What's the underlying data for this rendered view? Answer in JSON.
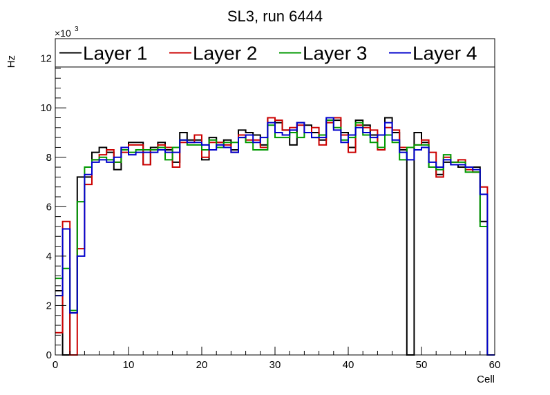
{
  "chart_data": {
    "type": "line",
    "title": "SL3, run 6444",
    "xlabel": "Cell",
    "ylabel": "Hz",
    "y_multiplier": "×10",
    "y_multiplier_exp": "3",
    "xlim": [
      0,
      60
    ],
    "ylim": [
      0,
      12.8
    ],
    "x_ticks": [
      0,
      10,
      20,
      30,
      40,
      50,
      60
    ],
    "y_ticks": [
      0,
      2,
      4,
      6,
      8,
      10,
      12
    ],
    "grid": false,
    "legend_position": "top",
    "bin_edges_start": 0,
    "bin_width": 1,
    "series": [
      {
        "name": "Layer 1",
        "color": "#000000",
        "values": [
          2.6,
          0,
          1.7,
          7.2,
          7.2,
          8.2,
          8.4,
          8.2,
          7.5,
          8.4,
          8.6,
          8.6,
          7.7,
          8.4,
          8.6,
          8.3,
          7.8,
          9.0,
          8.7,
          8.7,
          7.9,
          8.8,
          8.6,
          8.7,
          8.3,
          9.1,
          9.0,
          8.9,
          8.5,
          9.6,
          9.4,
          9.1,
          8.5,
          9.4,
          9.3,
          9.0,
          8.7,
          9.5,
          9.5,
          9.0,
          8.4,
          9.5,
          9.3,
          8.9,
          8.4,
          9.6,
          9.0,
          8.3,
          0,
          9.0,
          8.6,
          7.6,
          7.3,
          7.8,
          7.7,
          7.6,
          7.6,
          7.6,
          5.4,
          0
        ]
      },
      {
        "name": "Layer 2",
        "color": "#cc0000",
        "values": [
          0.9,
          5.4,
          0,
          4.3,
          6.9,
          7.9,
          8.1,
          8.3,
          7.8,
          8.2,
          8.5,
          8.5,
          7.7,
          8.3,
          8.5,
          8.4,
          7.6,
          8.6,
          8.6,
          8.9,
          8.0,
          8.6,
          8.6,
          8.5,
          8.2,
          8.9,
          8.7,
          8.7,
          8.4,
          9.6,
          9.5,
          9.1,
          9.2,
          9.3,
          9.0,
          9.2,
          8.5,
          9.4,
          9.6,
          8.9,
          8.2,
          9.3,
          9.2,
          9.1,
          8.3,
          9.2,
          9.1,
          8.4,
          8.4,
          8.5,
          8.7,
          8.2,
          7.2,
          8.0,
          7.8,
          7.9,
          7.5,
          7.4,
          6.8,
          0
        ]
      },
      {
        "name": "Layer 3",
        "color": "#009900",
        "values": [
          3.1,
          3.5,
          1.8,
          6.2,
          7.6,
          7.9,
          8.0,
          7.9,
          7.8,
          8.3,
          8.2,
          8.3,
          8.3,
          8.3,
          8.4,
          7.9,
          8.4,
          8.7,
          8.5,
          8.5,
          8.3,
          8.7,
          8.4,
          8.6,
          8.6,
          8.8,
          8.6,
          8.3,
          8.3,
          9.3,
          8.8,
          8.8,
          9.0,
          8.8,
          9.0,
          8.8,
          8.9,
          9.5,
          9.2,
          8.7,
          8.8,
          9.4,
          8.9,
          8.6,
          8.4,
          8.9,
          8.6,
          7.9,
          8.4,
          8.5,
          8.5,
          7.6,
          7.5,
          8.1,
          7.8,
          7.8,
          7.4,
          7.4,
          5.2,
          0
        ]
      },
      {
        "name": "Layer 4",
        "color": "#0000cc",
        "values": [
          2.4,
          5.1,
          1.7,
          4.0,
          7.3,
          7.8,
          7.9,
          7.8,
          8.0,
          8.4,
          8.1,
          8.2,
          8.2,
          8.2,
          8.3,
          8.2,
          8.2,
          8.7,
          8.6,
          8.6,
          8.5,
          8.3,
          8.5,
          8.4,
          8.2,
          8.8,
          8.9,
          8.6,
          8.8,
          9.4,
          9.0,
          8.9,
          9.1,
          9.4,
          9.0,
          8.8,
          8.8,
          9.6,
          9.1,
          8.6,
          8.9,
          9.2,
          9.0,
          8.8,
          8.9,
          9.4,
          8.7,
          8.2,
          7.9,
          8.3,
          8.4,
          7.8,
          7.6,
          7.9,
          7.7,
          7.7,
          7.6,
          7.5,
          6.5,
          0
        ]
      }
    ]
  }
}
